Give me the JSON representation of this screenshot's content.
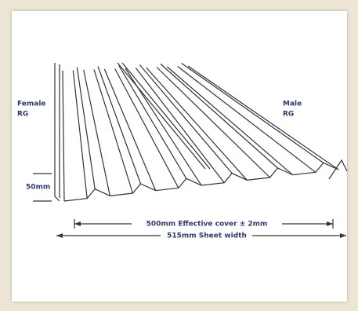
{
  "labels": {
    "female": [
      "Female",
      "RG"
    ],
    "male": [
      "Male",
      "RG"
    ],
    "height": "50mm",
    "effective_cover": "500mm Effective cover ± 2mm",
    "sheet_width": "515mm Sheet width"
  }
}
